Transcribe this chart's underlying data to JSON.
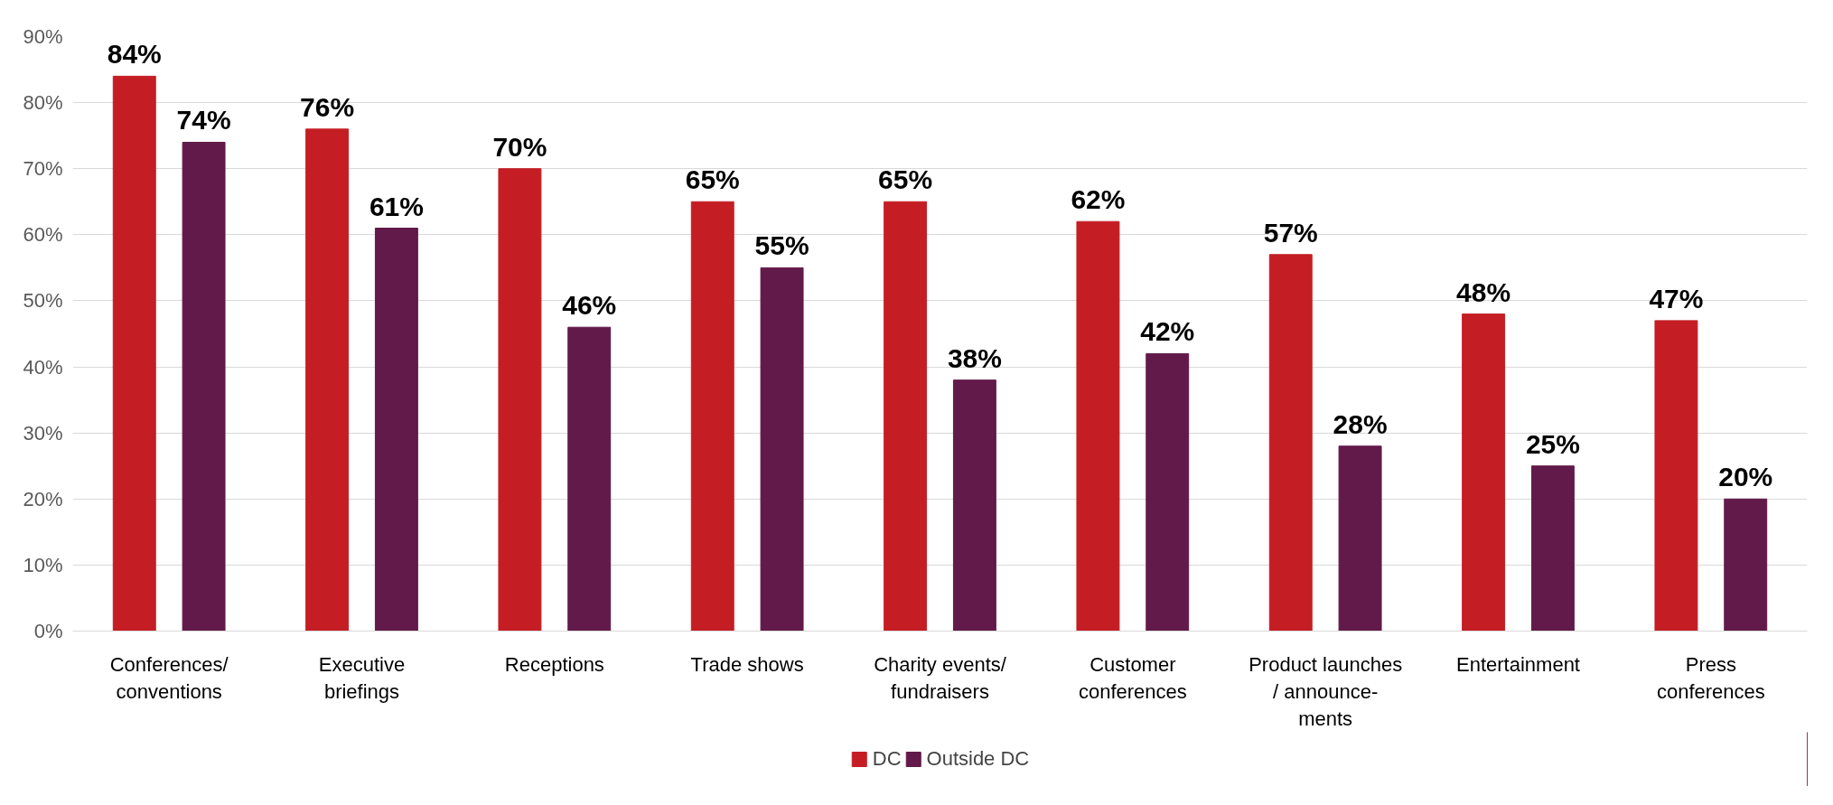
{
  "chart_data": {
    "type": "bar",
    "categories": [
      "Conferences/\nconventions",
      "Executive\nbriefings",
      "Receptions",
      "Trade shows",
      "Charity events/\nfundraisers",
      "Customer\nconferences",
      "Product launches\n/ announce-\nments",
      "Entertainment",
      "Press\nconferences"
    ],
    "series": [
      {
        "name": "DC",
        "color": "#c41e24",
        "values": [
          84,
          76,
          70,
          65,
          65,
          62,
          57,
          48,
          47
        ],
        "value_labels": [
          "84%",
          "76%",
          "70%",
          "65%",
          "65%",
          "62%",
          "57%",
          "48%",
          "47%"
        ]
      },
      {
        "name": "Outside DC",
        "color": "#621a4a",
        "values": [
          74,
          61,
          46,
          55,
          38,
          42,
          28,
          25,
          20
        ],
        "value_labels": [
          "74%",
          "61%",
          "46%",
          "55%",
          "38%",
          "42%",
          "28%",
          "25%",
          "20%"
        ]
      }
    ],
    "ylim": [
      0,
      90
    ],
    "yticks": [
      {
        "value": 0,
        "label": "0%"
      },
      {
        "value": 10,
        "label": "10%"
      },
      {
        "value": 20,
        "label": "20%"
      },
      {
        "value": 30,
        "label": "30%"
      },
      {
        "value": 40,
        "label": "40%"
      },
      {
        "value": 50,
        "label": "50%"
      },
      {
        "value": 60,
        "label": "60%"
      },
      {
        "value": 70,
        "label": "70%"
      },
      {
        "value": 80,
        "label": "80%"
      },
      {
        "value": 90,
        "label": "90%"
      }
    ],
    "grid": "y",
    "legend": "bottom"
  }
}
